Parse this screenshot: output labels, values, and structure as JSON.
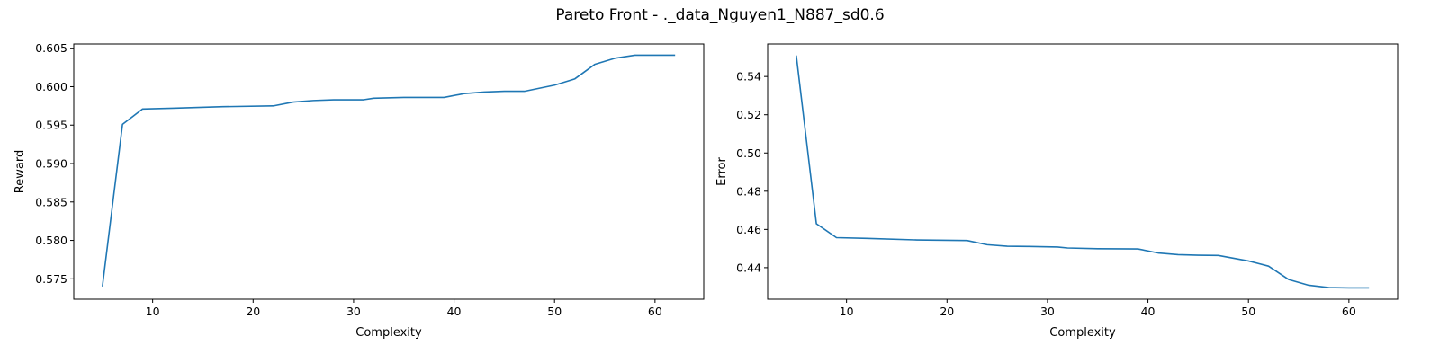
{
  "figure": {
    "title": "Pareto Front - ._data_Nguyen1_N887_sd0.6",
    "line_color": "#1f77b4"
  },
  "chart_data": [
    {
      "type": "line",
      "xlabel": "Complexity",
      "ylabel": "Reward",
      "xlim": [
        2.15,
        64.85
      ],
      "ylim": [
        0.57235,
        0.60555
      ],
      "xticks": [
        10,
        20,
        30,
        40,
        50,
        60
      ],
      "xtick_labels": [
        "10",
        "20",
        "30",
        "40",
        "50",
        "60"
      ],
      "yticks": [
        0.575,
        0.58,
        0.585,
        0.59,
        0.595,
        0.6,
        0.605
      ],
      "ytick_labels": [
        "0.575",
        "0.580",
        "0.585",
        "0.590",
        "0.595",
        "0.600",
        "0.605"
      ],
      "grid": false,
      "series": [
        {
          "x": [
            5,
            7,
            9,
            12,
            17,
            22,
            24,
            26,
            28,
            31,
            32,
            35,
            39,
            41,
            43,
            45,
            47,
            50,
            52,
            54,
            56,
            58,
            60,
            62
          ],
          "y": [
            0.574,
            0.5951,
            0.5971,
            0.5972,
            0.5974,
            0.5975,
            0.598,
            0.5982,
            0.5983,
            0.5983,
            0.5985,
            0.5986,
            0.5986,
            0.5991,
            0.5993,
            0.5994,
            0.5994,
            0.6002,
            0.601,
            0.6029,
            0.6037,
            0.6041,
            0.6041,
            0.6041
          ]
        }
      ]
    },
    {
      "type": "line",
      "xlabel": "Complexity",
      "ylabel": "Error",
      "xlim": [
        2.15,
        64.85
      ],
      "ylim": [
        0.4235,
        0.557
      ],
      "xticks": [
        10,
        20,
        30,
        40,
        50,
        60
      ],
      "xtick_labels": [
        "10",
        "20",
        "30",
        "40",
        "50",
        "60"
      ],
      "yticks": [
        0.44,
        0.46,
        0.48,
        0.5,
        0.52,
        0.54
      ],
      "ytick_labels": [
        "0.44",
        "0.46",
        "0.48",
        "0.50",
        "0.52",
        "0.54"
      ],
      "grid": false,
      "series": [
        {
          "x": [
            5,
            7,
            9,
            12,
            17,
            22,
            24,
            26,
            28,
            31,
            32,
            35,
            39,
            41,
            43,
            45,
            47,
            50,
            52,
            54,
            56,
            58,
            60,
            62
          ],
          "y": [
            0.551,
            0.463,
            0.4557,
            0.4553,
            0.4545,
            0.4542,
            0.452,
            0.4512,
            0.4511,
            0.4508,
            0.4503,
            0.4499,
            0.4498,
            0.4477,
            0.4468,
            0.4465,
            0.4464,
            0.4435,
            0.4408,
            0.4338,
            0.4308,
            0.4296,
            0.4294,
            0.4294
          ]
        }
      ]
    }
  ]
}
